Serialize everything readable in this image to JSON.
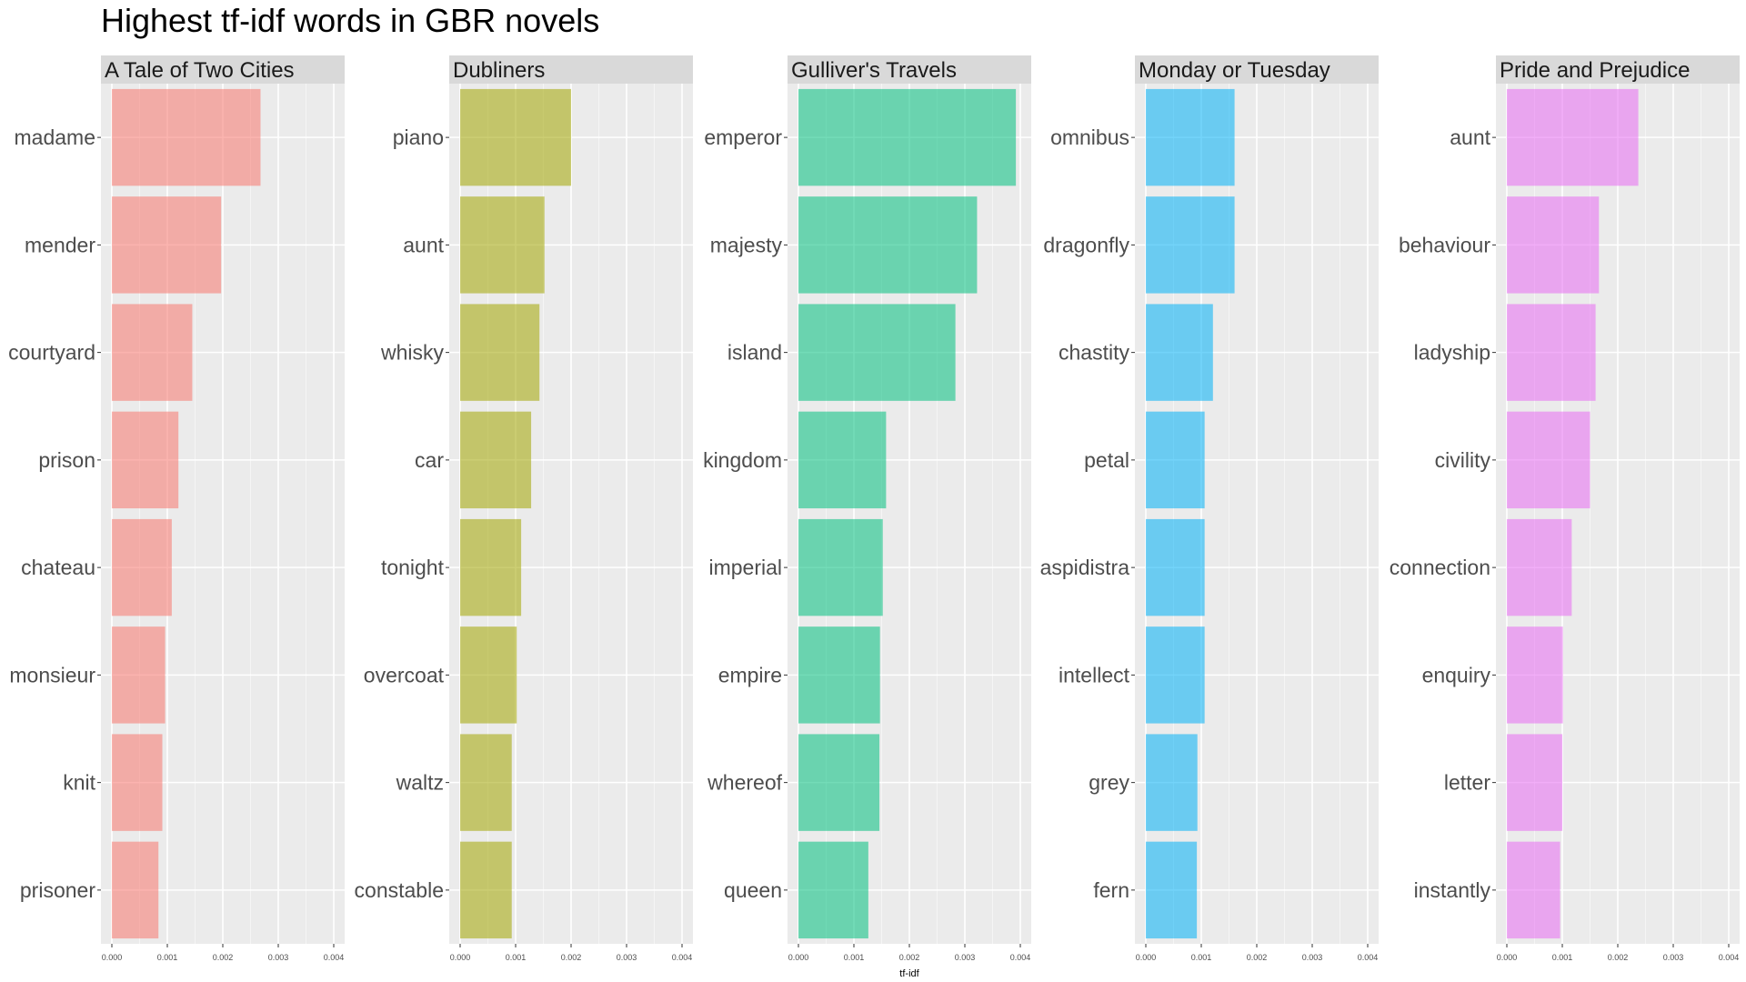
{
  "chart_data": {
    "type": "bar",
    "orientation": "horizontal",
    "title": "Highest tf-idf words in GBR novels",
    "xlabel": "tf-idf",
    "ylabel": "",
    "xlim": [
      0,
      0.004
    ],
    "xticks": [
      "0.000",
      "0.001",
      "0.002",
      "0.003",
      "0.004"
    ],
    "grid": true,
    "legend": "none",
    "facets": [
      {
        "name": "A Tale of Two Cities",
        "color": "#F8766D",
        "categories": [
          "madame",
          "mender",
          "courtyard",
          "prison",
          "chateau",
          "monsieur",
          "knit",
          "prisoner"
        ],
        "values": [
          0.00268,
          0.00197,
          0.00145,
          0.0012,
          0.00108,
          0.00096,
          0.00091,
          0.00084
        ]
      },
      {
        "name": "Dubliners",
        "color": "#A3A500",
        "categories": [
          "piano",
          "aunt",
          "whisky",
          "car",
          "tonight",
          "overcoat",
          "waltz",
          "constable"
        ],
        "values": [
          0.002,
          0.00152,
          0.00143,
          0.00128,
          0.0011,
          0.00102,
          0.00093,
          0.00093
        ]
      },
      {
        "name": "Gulliver's Travels",
        "color": "#00BF7D",
        "categories": [
          "emperor",
          "majesty",
          "island",
          "kingdom",
          "imperial",
          "empire",
          "whereof",
          "queen"
        ],
        "values": [
          0.00392,
          0.00322,
          0.00283,
          0.00158,
          0.00152,
          0.00147,
          0.00146,
          0.00126
        ]
      },
      {
        "name": "Monday or Tuesday",
        "color": "#00B0F6",
        "categories": [
          "omnibus",
          "dragonfly",
          "chastity",
          "petal",
          "aspidistra",
          "intellect",
          "grey",
          "fern"
        ],
        "values": [
          0.0016,
          0.0016,
          0.00121,
          0.00106,
          0.00106,
          0.00106,
          0.00093,
          0.00092
        ]
      },
      {
        "name": "Pride and Prejudice",
        "color": "#E76BF3",
        "categories": [
          "aunt",
          "behaviour",
          "ladyship",
          "civility",
          "connection",
          "enquiry",
          "letter",
          "instantly"
        ],
        "values": [
          0.00237,
          0.00166,
          0.0016,
          0.0015,
          0.00117,
          0.00101,
          0.001,
          0.00096
        ]
      }
    ]
  }
}
